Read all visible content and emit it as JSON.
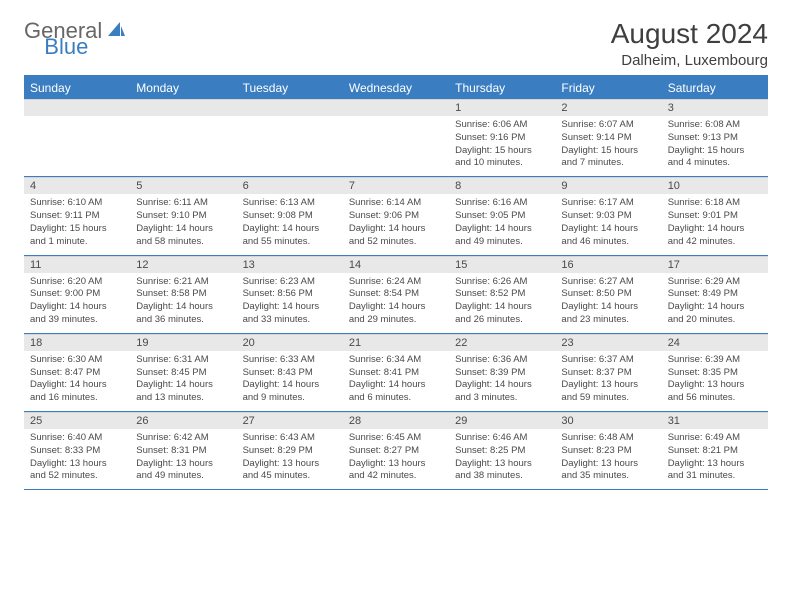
{
  "brand": {
    "part1": "General",
    "part2": "Blue"
  },
  "title": "August 2024",
  "location": "Dalheim, Luxembourg",
  "colors": {
    "accent": "#3a7ec1",
    "header_row_bg": "#3a7ec1",
    "header_row_text": "#ffffff",
    "daynum_bg": "#e8e8e8",
    "text": "#4a4a4a",
    "logo_gray": "#676767",
    "background": "#ffffff"
  },
  "typography": {
    "title_fontsize": 28,
    "location_fontsize": 15,
    "dayheader_fontsize": 12,
    "daynum_fontsize": 11,
    "body_fontsize": 9.5
  },
  "calendar": {
    "type": "table",
    "columns": [
      "Sunday",
      "Monday",
      "Tuesday",
      "Wednesday",
      "Thursday",
      "Friday",
      "Saturday"
    ],
    "weeks": [
      [
        null,
        null,
        null,
        null,
        {
          "n": "1",
          "sunrise": "6:06 AM",
          "sunset": "9:16 PM",
          "daylight": "15 hours and 10 minutes."
        },
        {
          "n": "2",
          "sunrise": "6:07 AM",
          "sunset": "9:14 PM",
          "daylight": "15 hours and 7 minutes."
        },
        {
          "n": "3",
          "sunrise": "6:08 AM",
          "sunset": "9:13 PM",
          "daylight": "15 hours and 4 minutes."
        }
      ],
      [
        {
          "n": "4",
          "sunrise": "6:10 AM",
          "sunset": "9:11 PM",
          "daylight": "15 hours and 1 minute."
        },
        {
          "n": "5",
          "sunrise": "6:11 AM",
          "sunset": "9:10 PM",
          "daylight": "14 hours and 58 minutes."
        },
        {
          "n": "6",
          "sunrise": "6:13 AM",
          "sunset": "9:08 PM",
          "daylight": "14 hours and 55 minutes."
        },
        {
          "n": "7",
          "sunrise": "6:14 AM",
          "sunset": "9:06 PM",
          "daylight": "14 hours and 52 minutes."
        },
        {
          "n": "8",
          "sunrise": "6:16 AM",
          "sunset": "9:05 PM",
          "daylight": "14 hours and 49 minutes."
        },
        {
          "n": "9",
          "sunrise": "6:17 AM",
          "sunset": "9:03 PM",
          "daylight": "14 hours and 46 minutes."
        },
        {
          "n": "10",
          "sunrise": "6:18 AM",
          "sunset": "9:01 PM",
          "daylight": "14 hours and 42 minutes."
        }
      ],
      [
        {
          "n": "11",
          "sunrise": "6:20 AM",
          "sunset": "9:00 PM",
          "daylight": "14 hours and 39 minutes."
        },
        {
          "n": "12",
          "sunrise": "6:21 AM",
          "sunset": "8:58 PM",
          "daylight": "14 hours and 36 minutes."
        },
        {
          "n": "13",
          "sunrise": "6:23 AM",
          "sunset": "8:56 PM",
          "daylight": "14 hours and 33 minutes."
        },
        {
          "n": "14",
          "sunrise": "6:24 AM",
          "sunset": "8:54 PM",
          "daylight": "14 hours and 29 minutes."
        },
        {
          "n": "15",
          "sunrise": "6:26 AM",
          "sunset": "8:52 PM",
          "daylight": "14 hours and 26 minutes."
        },
        {
          "n": "16",
          "sunrise": "6:27 AM",
          "sunset": "8:50 PM",
          "daylight": "14 hours and 23 minutes."
        },
        {
          "n": "17",
          "sunrise": "6:29 AM",
          "sunset": "8:49 PM",
          "daylight": "14 hours and 20 minutes."
        }
      ],
      [
        {
          "n": "18",
          "sunrise": "6:30 AM",
          "sunset": "8:47 PM",
          "daylight": "14 hours and 16 minutes."
        },
        {
          "n": "19",
          "sunrise": "6:31 AM",
          "sunset": "8:45 PM",
          "daylight": "14 hours and 13 minutes."
        },
        {
          "n": "20",
          "sunrise": "6:33 AM",
          "sunset": "8:43 PM",
          "daylight": "14 hours and 9 minutes."
        },
        {
          "n": "21",
          "sunrise": "6:34 AM",
          "sunset": "8:41 PM",
          "daylight": "14 hours and 6 minutes."
        },
        {
          "n": "22",
          "sunrise": "6:36 AM",
          "sunset": "8:39 PM",
          "daylight": "14 hours and 3 minutes."
        },
        {
          "n": "23",
          "sunrise": "6:37 AM",
          "sunset": "8:37 PM",
          "daylight": "13 hours and 59 minutes."
        },
        {
          "n": "24",
          "sunrise": "6:39 AM",
          "sunset": "8:35 PM",
          "daylight": "13 hours and 56 minutes."
        }
      ],
      [
        {
          "n": "25",
          "sunrise": "6:40 AM",
          "sunset": "8:33 PM",
          "daylight": "13 hours and 52 minutes."
        },
        {
          "n": "26",
          "sunrise": "6:42 AM",
          "sunset": "8:31 PM",
          "daylight": "13 hours and 49 minutes."
        },
        {
          "n": "27",
          "sunrise": "6:43 AM",
          "sunset": "8:29 PM",
          "daylight": "13 hours and 45 minutes."
        },
        {
          "n": "28",
          "sunrise": "6:45 AM",
          "sunset": "8:27 PM",
          "daylight": "13 hours and 42 minutes."
        },
        {
          "n": "29",
          "sunrise": "6:46 AM",
          "sunset": "8:25 PM",
          "daylight": "13 hours and 38 minutes."
        },
        {
          "n": "30",
          "sunrise": "6:48 AM",
          "sunset": "8:23 PM",
          "daylight": "13 hours and 35 minutes."
        },
        {
          "n": "31",
          "sunrise": "6:49 AM",
          "sunset": "8:21 PM",
          "daylight": "13 hours and 31 minutes."
        }
      ]
    ]
  },
  "labels": {
    "sunrise_prefix": "Sunrise: ",
    "sunset_prefix": "Sunset: ",
    "daylight_prefix": "Daylight: "
  }
}
